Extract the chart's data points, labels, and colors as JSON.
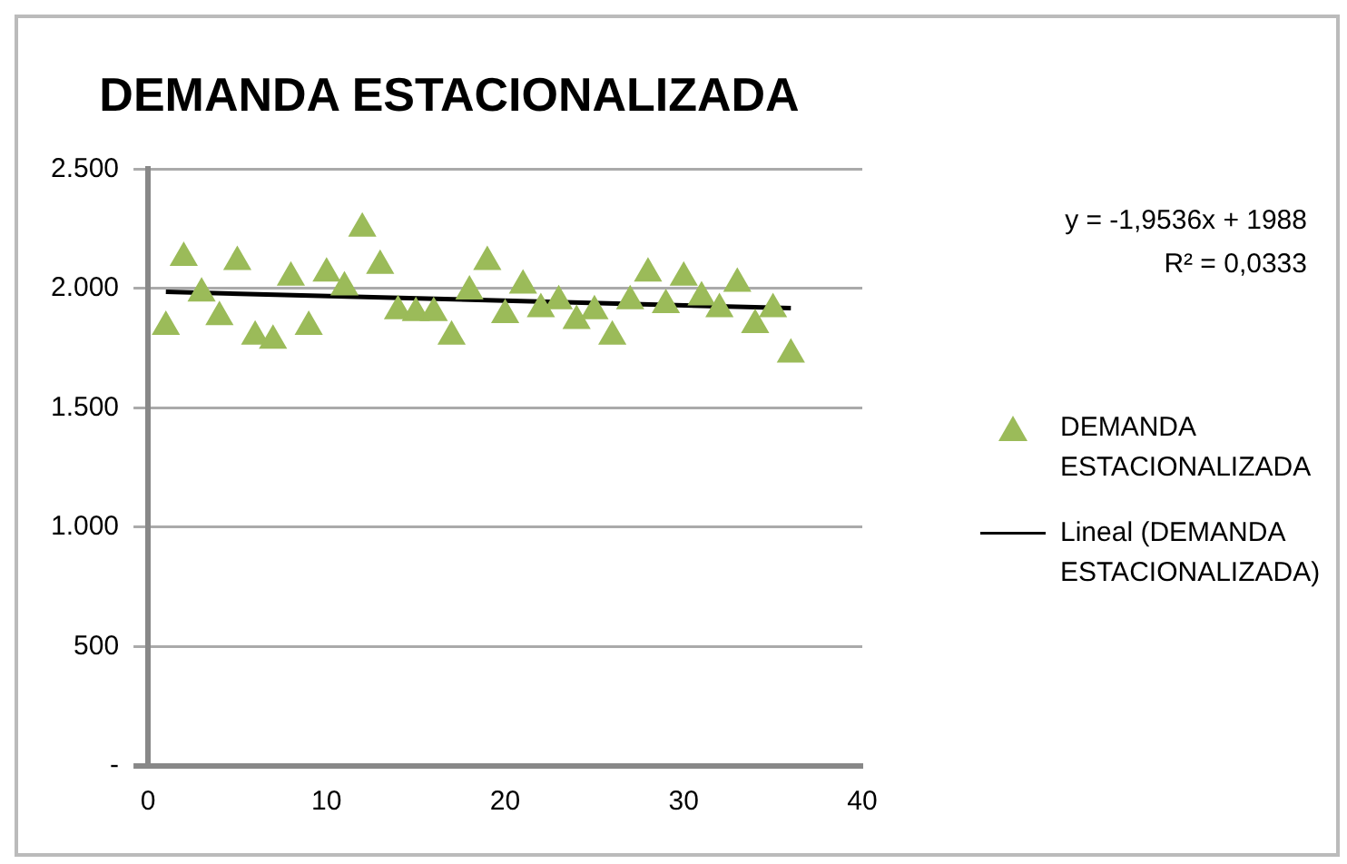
{
  "chart_data": {
    "type": "scatter",
    "title": "DEMANDA ESTACIONALIZADA",
    "x": [
      1,
      2,
      3,
      4,
      5,
      6,
      7,
      8,
      9,
      10,
      11,
      12,
      13,
      14,
      15,
      16,
      17,
      18,
      19,
      20,
      21,
      22,
      23,
      24,
      25,
      26,
      27,
      28,
      29,
      30,
      31,
      32,
      33,
      34,
      35,
      36
    ],
    "series": [
      {
        "name": "DEMANDA ESTACIONALIZADA",
        "color": "#9bbb59",
        "marker": "triangle",
        "values": [
          1840,
          2129,
          1980,
          1881,
          2112,
          1799,
          1782,
          2046,
          1840,
          2063,
          2005,
          2252,
          2096,
          1906,
          1898,
          1898,
          1799,
          1988,
          2112,
          1889,
          2013,
          1914,
          1947,
          1865,
          1906,
          1799,
          1947,
          2063,
          1931,
          2046,
          1964,
          1914,
          2021,
          1848,
          1914,
          1724
        ]
      },
      {
        "name": "Lineal (DEMANDA ESTACIONALIZADA)",
        "type": "line",
        "color": "#000000",
        "marker": "none",
        "x": [
          1,
          36
        ],
        "values": [
          1986,
          1918
        ]
      }
    ],
    "xlim": [
      0,
      40
    ],
    "xticks": [
      0,
      10,
      20,
      30,
      40
    ],
    "ylim": [
      0,
      2500
    ],
    "yticks": [
      {
        "value": 0,
        "label": "-"
      },
      {
        "value": 500,
        "label": "500"
      },
      {
        "value": 1000,
        "label": "1.000"
      },
      {
        "value": 1500,
        "label": "1.500"
      },
      {
        "value": 2000,
        "label": "2.000"
      },
      {
        "value": 2500,
        "label": "2.500"
      }
    ],
    "grid": "y",
    "legend": "right",
    "annotations": [
      "y = -1,9536x + 1988",
      "R² = 0,0333"
    ]
  }
}
